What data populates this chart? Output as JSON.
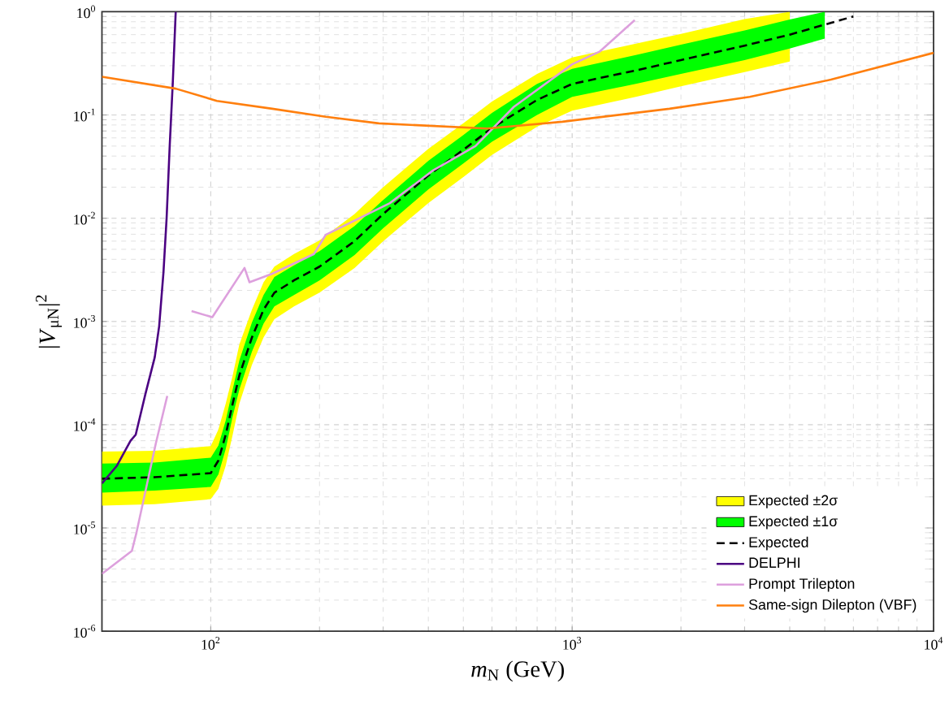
{
  "chart_data": {
    "type": "line",
    "xlabel": "*m*$_{N}$ (GeV)",
    "ylabel": "|*V*$_{μN}$|$^{2}$",
    "log": "xy",
    "grid": true,
    "legend": "bottom right",
    "xlim": [
      50,
      10000
    ],
    "ylim": [
      1e-06,
      1
    ],
    "xticks": [
      {
        "value": 100,
        "label": "10$^{2}$"
      },
      {
        "value": 1000,
        "label": "10$^{3}$"
      },
      {
        "value": 10000,
        "label": "10$^{4}$"
      }
    ],
    "yticks": [
      {
        "value": 1e-06,
        "label": "10$^{-6}$"
      },
      {
        "value": 1e-05,
        "label": "10$^{-5}$"
      },
      {
        "value": 0.0001,
        "label": "10$^{-4}$"
      },
      {
        "value": 0.001,
        "label": "10$^{-3}$"
      },
      {
        "value": 0.01,
        "label": "10$^{-2}$"
      },
      {
        "value": 0.1,
        "label": "10$^{-1}$"
      },
      {
        "value": 1,
        "label": "10$^{0}$"
      }
    ],
    "series": [
      {
        "name": "Expected ±2σ",
        "type": "area",
        "color": "#ffff00",
        "x": [
          50,
          70,
          100,
          105,
          110,
          115,
          120,
          130,
          140,
          150,
          170,
          200,
          250,
          300,
          400,
          500,
          600,
          800,
          1000,
          1500,
          2000,
          3000,
          4000
        ],
        "values": [
          null,
          null,
          null,
          null,
          null,
          null,
          null,
          null,
          null,
          null,
          null,
          null,
          null,
          null,
          null,
          null,
          null,
          null,
          null,
          null,
          null,
          null,
          null
        ],
        "lower": [
          1.65e-05,
          1.7e-05,
          1.9e-05,
          2.4e-05,
          4e-05,
          8e-05,
          0.00016,
          0.00038,
          0.0007,
          0.00105,
          0.0014,
          0.0019,
          0.0033,
          0.006,
          0.014,
          0.025,
          0.041,
          0.077,
          0.11,
          0.15,
          0.19,
          0.26,
          0.33
        ],
        "upper": [
          5.5e-05,
          5.6e-05,
          6.2e-05,
          9e-05,
          0.00016,
          0.0003,
          0.0006,
          0.0013,
          0.0024,
          0.0034,
          0.0045,
          0.0061,
          0.011,
          0.02,
          0.047,
          0.083,
          0.135,
          0.25,
          0.36,
          0.49,
          0.61,
          0.85,
          1.0
        ]
      },
      {
        "name": "Expected ±1σ",
        "type": "area",
        "color": "#00ff00",
        "x": [
          50,
          70,
          100,
          105,
          110,
          115,
          120,
          130,
          140,
          150,
          170,
          200,
          250,
          300,
          400,
          500,
          600,
          800,
          1000,
          1500,
          2000,
          3000,
          4000,
          5000
        ],
        "values": [
          null,
          null,
          null,
          null,
          null,
          null,
          null,
          null,
          null,
          null,
          null,
          null,
          null,
          null,
          null,
          null,
          null,
          null,
          null,
          null,
          null,
          null,
          null,
          null
        ],
        "lower": [
          2.2e-05,
          2.3e-05,
          2.5e-05,
          3.3e-05,
          5.8e-05,
          0.00012,
          0.00022,
          0.00051,
          0.00095,
          0.0014,
          0.0018,
          0.0025,
          0.0044,
          0.008,
          0.019,
          0.034,
          0.055,
          0.1,
          0.15,
          0.2,
          0.25,
          0.34,
          0.44,
          0.55
        ],
        "upper": [
          4.2e-05,
          4.3e-05,
          4.8e-05,
          6.3e-05,
          0.00011,
          0.00022,
          0.00042,
          0.00098,
          0.0018,
          0.0027,
          0.0035,
          0.0048,
          0.0084,
          0.015,
          0.036,
          0.064,
          0.105,
          0.2,
          0.28,
          0.38,
          0.48,
          0.66,
          0.84,
          1.0
        ]
      },
      {
        "name": "Expected",
        "color": "#000000",
        "line_style": "dashed",
        "x": [
          50,
          70,
          100,
          105,
          110,
          115,
          120,
          130,
          140,
          150,
          170,
          200,
          250,
          300,
          400,
          500,
          600,
          800,
          1000,
          1500,
          2000,
          3000,
          4000,
          5000,
          6000
        ],
        "values": [
          3e-05,
          3.1e-05,
          3.4e-05,
          4.5e-05,
          8e-05,
          0.00016,
          0.0003,
          0.0007,
          0.0013,
          0.0019,
          0.0025,
          0.0034,
          0.006,
          0.011,
          0.026,
          0.046,
          0.075,
          0.14,
          0.2,
          0.27,
          0.34,
          0.47,
          0.6,
          0.75,
          0.9
        ]
      },
      {
        "name": "DELPHI",
        "color": "#4b0082",
        "x": [
          50,
          55,
          60,
          62,
          66,
          70,
          72,
          74,
          75.5,
          77,
          78.5,
          80
        ],
        "values": [
          2.7e-05,
          4e-05,
          7e-05,
          8e-05,
          0.0002,
          0.00045,
          0.0009,
          0.003,
          0.01,
          0.05,
          0.2,
          1.0
        ]
      },
      {
        "name": "Prompt Trilepton",
        "color": "#dda0dd",
        "x": [
          50,
          60.5,
          62.3,
          70.5,
          75.8,
          80,
          88.5,
          101,
          124,
          128,
          148,
          193,
          208,
          313,
          412,
          540,
          690,
          1000,
          1190,
          1490
        ],
        "values": [
          3.6e-06,
          6e-06,
          9e-06,
          6.6e-05,
          0.00019,
          null,
          0.00126,
          0.0011,
          0.0033,
          0.0024,
          0.0029,
          0.0045,
          0.0069,
          0.014,
          0.029,
          0.05,
          0.12,
          0.31,
          0.41,
          0.83
        ]
      },
      {
        "name": "Same-sign Dilepton (VBF)",
        "color": "#ff7f0e",
        "x": [
          50,
          80,
          104,
          148,
          208,
          292,
          581,
          663,
          940,
          1860,
          3100,
          5200,
          10000
        ],
        "values": [
          0.235,
          0.18,
          0.137,
          0.115,
          0.096,
          0.083,
          0.074,
          0.077,
          0.086,
          0.115,
          0.15,
          0.22,
          0.4
        ]
      }
    ]
  }
}
